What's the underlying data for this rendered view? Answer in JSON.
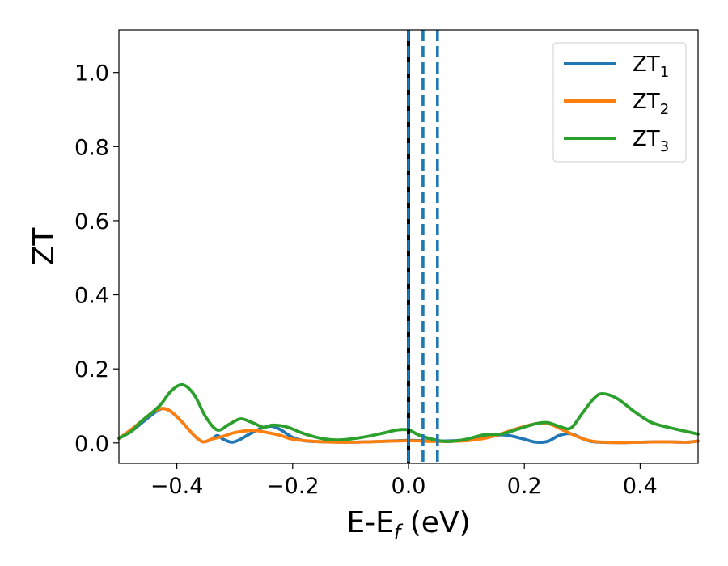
{
  "chart_data": {
    "type": "line",
    "xlabel": "E-E",
    "xlabel_sub": "f",
    "xlabel_unit": " (eV)",
    "ylabel": "ZT",
    "xlim": [
      -0.5,
      0.5
    ],
    "ylim": [
      -0.055,
      1.115
    ],
    "xticks": [
      -0.4,
      -0.2,
      0.0,
      0.2,
      0.4
    ],
    "xtick_labels": [
      "−0.4",
      "−0.2",
      "0.0",
      "0.2",
      "0.4"
    ],
    "yticks": [
      0.0,
      0.2,
      0.4,
      0.6,
      0.8,
      1.0
    ],
    "ytick_labels": [
      "0.0",
      "0.2",
      "0.4",
      "0.6",
      "0.8",
      "1.0"
    ],
    "grid": false,
    "legend_position": "top-right",
    "vlines": [
      {
        "x": 0.0,
        "style": "solid",
        "color": "#000000"
      },
      {
        "x": 0.0,
        "style": "dashed",
        "color": "#1f77b4"
      },
      {
        "x": 0.025,
        "style": "dashed",
        "color": "#1f77b4"
      },
      {
        "x": 0.05,
        "style": "dashed",
        "color": "#1f77b4"
      }
    ],
    "series": [
      {
        "name": "ZT",
        "name_sub": "1",
        "color": "#1f77b4",
        "points": [
          [
            -0.5,
            0.012
          ],
          [
            -0.48,
            0.03
          ],
          [
            -0.46,
            0.055
          ],
          [
            -0.44,
            0.08
          ],
          [
            -0.425,
            0.093
          ],
          [
            -0.41,
            0.085
          ],
          [
            -0.39,
            0.055
          ],
          [
            -0.37,
            0.02
          ],
          [
            -0.355,
            0.003
          ],
          [
            -0.34,
            0.01
          ],
          [
            -0.33,
            0.02
          ],
          [
            -0.32,
            0.01
          ],
          [
            -0.305,
            0.002
          ],
          [
            -0.29,
            0.01
          ],
          [
            -0.27,
            0.028
          ],
          [
            -0.25,
            0.042
          ],
          [
            -0.235,
            0.045
          ],
          [
            -0.22,
            0.035
          ],
          [
            -0.2,
            0.015
          ],
          [
            -0.18,
            0.006
          ],
          [
            -0.15,
            0.003
          ],
          [
            -0.1,
            0.002
          ],
          [
            -0.05,
            0.004
          ],
          [
            0.0,
            0.007
          ],
          [
            0.05,
            0.005
          ],
          [
            0.1,
            0.008
          ],
          [
            0.13,
            0.015
          ],
          [
            0.16,
            0.022
          ],
          [
            0.18,
            0.018
          ],
          [
            0.2,
            0.01
          ],
          [
            0.22,
            0.002
          ],
          [
            0.24,
            0.004
          ],
          [
            0.26,
            0.02
          ],
          [
            0.28,
            0.025
          ],
          [
            0.3,
            0.012
          ],
          [
            0.32,
            0.003
          ],
          [
            0.36,
            0.001
          ],
          [
            0.4,
            0.002
          ],
          [
            0.44,
            0.003
          ],
          [
            0.48,
            0.002
          ],
          [
            0.5,
            0.005
          ]
        ]
      },
      {
        "name": "ZT",
        "name_sub": "2",
        "color": "#ff7f0e",
        "points": [
          [
            -0.5,
            0.012
          ],
          [
            -0.48,
            0.035
          ],
          [
            -0.46,
            0.06
          ],
          [
            -0.44,
            0.085
          ],
          [
            -0.425,
            0.093
          ],
          [
            -0.41,
            0.085
          ],
          [
            -0.39,
            0.055
          ],
          [
            -0.37,
            0.02
          ],
          [
            -0.355,
            0.003
          ],
          [
            -0.34,
            0.01
          ],
          [
            -0.32,
            0.018
          ],
          [
            -0.3,
            0.028
          ],
          [
            -0.27,
            0.034
          ],
          [
            -0.25,
            0.03
          ],
          [
            -0.22,
            0.02
          ],
          [
            -0.2,
            0.01
          ],
          [
            -0.15,
            0.003
          ],
          [
            -0.1,
            0.002
          ],
          [
            -0.05,
            0.004
          ],
          [
            0.0,
            0.006
          ],
          [
            0.05,
            0.004
          ],
          [
            0.1,
            0.006
          ],
          [
            0.13,
            0.012
          ],
          [
            0.16,
            0.025
          ],
          [
            0.19,
            0.04
          ],
          [
            0.22,
            0.052
          ],
          [
            0.24,
            0.053
          ],
          [
            0.26,
            0.04
          ],
          [
            0.28,
            0.025
          ],
          [
            0.3,
            0.012
          ],
          [
            0.32,
            0.004
          ],
          [
            0.36,
            0.001
          ],
          [
            0.4,
            0.002
          ],
          [
            0.44,
            0.003
          ],
          [
            0.48,
            0.002
          ],
          [
            0.5,
            0.005
          ]
        ]
      },
      {
        "name": "ZT",
        "name_sub": "3",
        "color": "#2ca02c",
        "points": [
          [
            -0.5,
            0.013
          ],
          [
            -0.48,
            0.03
          ],
          [
            -0.46,
            0.06
          ],
          [
            -0.43,
            0.1
          ],
          [
            -0.41,
            0.14
          ],
          [
            -0.39,
            0.157
          ],
          [
            -0.37,
            0.13
          ],
          [
            -0.35,
            0.07
          ],
          [
            -0.33,
            0.035
          ],
          [
            -0.31,
            0.05
          ],
          [
            -0.29,
            0.065
          ],
          [
            -0.27,
            0.055
          ],
          [
            -0.25,
            0.042
          ],
          [
            -0.235,
            0.048
          ],
          [
            -0.21,
            0.043
          ],
          [
            -0.18,
            0.025
          ],
          [
            -0.15,
            0.012
          ],
          [
            -0.12,
            0.008
          ],
          [
            -0.08,
            0.015
          ],
          [
            -0.04,
            0.028
          ],
          [
            -0.02,
            0.035
          ],
          [
            0.0,
            0.035
          ],
          [
            0.02,
            0.02
          ],
          [
            0.05,
            0.007
          ],
          [
            0.07,
            0.004
          ],
          [
            0.1,
            0.01
          ],
          [
            0.13,
            0.022
          ],
          [
            0.16,
            0.024
          ],
          [
            0.19,
            0.038
          ],
          [
            0.22,
            0.052
          ],
          [
            0.24,
            0.055
          ],
          [
            0.26,
            0.045
          ],
          [
            0.28,
            0.04
          ],
          [
            0.3,
            0.08
          ],
          [
            0.32,
            0.12
          ],
          [
            0.335,
            0.133
          ],
          [
            0.36,
            0.12
          ],
          [
            0.39,
            0.085
          ],
          [
            0.42,
            0.055
          ],
          [
            0.46,
            0.038
          ],
          [
            0.5,
            0.024
          ]
        ]
      }
    ]
  }
}
